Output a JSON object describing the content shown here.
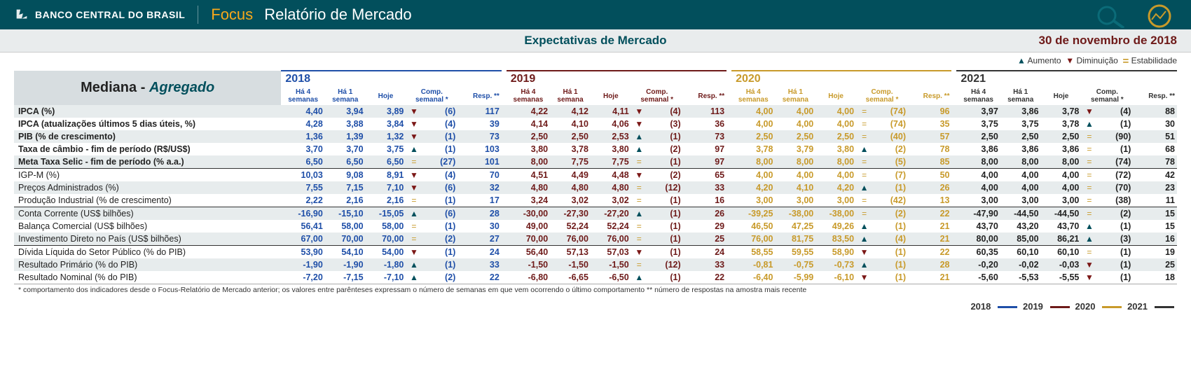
{
  "header": {
    "bank": "BANCO CENTRAL DO BRASIL",
    "focus": "Focus",
    "report": "Relatório de Mercado"
  },
  "subhead": {
    "title": "Expectativas de Mercado",
    "date": "30 de novembro de 2018"
  },
  "legend": {
    "up": "Aumento",
    "down": "Diminuição",
    "eq": "Estabilidade"
  },
  "table_title": {
    "a": "Mediana -",
    "b": "Agregado"
  },
  "columns": {
    "ha4": "Há 4\nsemanas",
    "ha1": "Há 1\nsemana",
    "hoje": "Hoje",
    "comp": "Comp.\nsemanal *",
    "resp": "Resp. **"
  },
  "years": [
    "2018",
    "2019",
    "2020",
    "2021"
  ],
  "year_colors": {
    "2018": "#1f4fa8",
    "2019": "#6e1a19",
    "2020": "#c89a2a",
    "2021": "#333333"
  },
  "footnote": "* comportamento dos indicadores desde o Focus-Relatório de Mercado anterior; os valores entre parênteses expressam o número de semanas em que vem ocorrendo o último comportamento ** número de respostas na amostra mais recente",
  "rows": [
    {
      "label": "IPCA (%)",
      "odd": true,
      "sep": false,
      "y": {
        "2018": {
          "h4": "4,40",
          "h1": "3,94",
          "hj": "3,89",
          "dir": "down",
          "cnt": "(6)",
          "r": "117"
        },
        "2019": {
          "h4": "4,22",
          "h1": "4,12",
          "hj": "4,11",
          "dir": "down",
          "cnt": "(4)",
          "r": "113"
        },
        "2020": {
          "h4": "4,00",
          "h1": "4,00",
          "hj": "4,00",
          "dir": "eq",
          "cnt": "(74)",
          "r": "96"
        },
        "2021": {
          "h4": "3,97",
          "h1": "3,86",
          "hj": "3,78",
          "dir": "down",
          "cnt": "(4)",
          "r": "88"
        }
      }
    },
    {
      "label": "IPCA (atualizações últimos 5 dias úteis, %)",
      "odd": false,
      "y": {
        "2018": {
          "h4": "4,28",
          "h1": "3,88",
          "hj": "3,84",
          "dir": "down",
          "cnt": "(4)",
          "r": "39"
        },
        "2019": {
          "h4": "4,14",
          "h1": "4,10",
          "hj": "4,06",
          "dir": "down",
          "cnt": "(3)",
          "r": "36"
        },
        "2020": {
          "h4": "4,00",
          "h1": "4,00",
          "hj": "4,00",
          "dir": "eq",
          "cnt": "(74)",
          "r": "35"
        },
        "2021": {
          "h4": "3,75",
          "h1": "3,75",
          "hj": "3,78",
          "dir": "up",
          "cnt": "(1)",
          "r": "30"
        }
      }
    },
    {
      "label": "PIB (% de crescimento)",
      "odd": true,
      "y": {
        "2018": {
          "h4": "1,36",
          "h1": "1,39",
          "hj": "1,32",
          "dir": "down",
          "cnt": "(1)",
          "r": "73"
        },
        "2019": {
          "h4": "2,50",
          "h1": "2,50",
          "hj": "2,53",
          "dir": "up",
          "cnt": "(1)",
          "r": "73"
        },
        "2020": {
          "h4": "2,50",
          "h1": "2,50",
          "hj": "2,50",
          "dir": "eq",
          "cnt": "(40)",
          "r": "57"
        },
        "2021": {
          "h4": "2,50",
          "h1": "2,50",
          "hj": "2,50",
          "dir": "eq",
          "cnt": "(90)",
          "r": "51"
        }
      }
    },
    {
      "label": "Taxa de câmbio - fim de período (R$/US$)",
      "odd": false,
      "y": {
        "2018": {
          "h4": "3,70",
          "h1": "3,70",
          "hj": "3,75",
          "dir": "up",
          "cnt": "(1)",
          "r": "103"
        },
        "2019": {
          "h4": "3,80",
          "h1": "3,78",
          "hj": "3,80",
          "dir": "up",
          "cnt": "(2)",
          "r": "97"
        },
        "2020": {
          "h4": "3,78",
          "h1": "3,79",
          "hj": "3,80",
          "dir": "up",
          "cnt": "(2)",
          "r": "78"
        },
        "2021": {
          "h4": "3,86",
          "h1": "3,86",
          "hj": "3,86",
          "dir": "eq",
          "cnt": "(1)",
          "r": "68"
        }
      }
    },
    {
      "label": "Meta Taxa Selic - fim de período (% a.a.)",
      "odd": true,
      "y": {
        "2018": {
          "h4": "6,50",
          "h1": "6,50",
          "hj": "6,50",
          "dir": "eq",
          "cnt": "(27)",
          "r": "101"
        },
        "2019": {
          "h4": "8,00",
          "h1": "7,75",
          "hj": "7,75",
          "dir": "eq",
          "cnt": "(1)",
          "r": "97"
        },
        "2020": {
          "h4": "8,00",
          "h1": "8,00",
          "hj": "8,00",
          "dir": "eq",
          "cnt": "(5)",
          "r": "85"
        },
        "2021": {
          "h4": "8,00",
          "h1": "8,00",
          "hj": "8,00",
          "dir": "eq",
          "cnt": "(74)",
          "r": "78"
        }
      }
    },
    {
      "label": "IGP-M (%)",
      "odd": false,
      "sep": true,
      "y": {
        "2018": {
          "h4": "10,03",
          "h1": "9,08",
          "hj": "8,91",
          "dir": "down",
          "cnt": "(4)",
          "r": "70"
        },
        "2019": {
          "h4": "4,51",
          "h1": "4,49",
          "hj": "4,48",
          "dir": "down",
          "cnt": "(2)",
          "r": "65"
        },
        "2020": {
          "h4": "4,00",
          "h1": "4,00",
          "hj": "4,00",
          "dir": "eq",
          "cnt": "(7)",
          "r": "50"
        },
        "2021": {
          "h4": "4,00",
          "h1": "4,00",
          "hj": "4,00",
          "dir": "eq",
          "cnt": "(72)",
          "r": "42"
        }
      }
    },
    {
      "label": "Preços Administrados (%)",
      "odd": true,
      "y": {
        "2018": {
          "h4": "7,55",
          "h1": "7,15",
          "hj": "7,10",
          "dir": "down",
          "cnt": "(6)",
          "r": "32"
        },
        "2019": {
          "h4": "4,80",
          "h1": "4,80",
          "hj": "4,80",
          "dir": "eq",
          "cnt": "(12)",
          "r": "33"
        },
        "2020": {
          "h4": "4,20",
          "h1": "4,10",
          "hj": "4,20",
          "dir": "up",
          "cnt": "(1)",
          "r": "26"
        },
        "2021": {
          "h4": "4,00",
          "h1": "4,00",
          "hj": "4,00",
          "dir": "eq",
          "cnt": "(70)",
          "r": "23"
        }
      }
    },
    {
      "label": "Produção Industrial (% de crescimento)",
      "odd": false,
      "y": {
        "2018": {
          "h4": "2,22",
          "h1": "2,16",
          "hj": "2,16",
          "dir": "eq",
          "cnt": "(1)",
          "r": "17"
        },
        "2019": {
          "h4": "3,24",
          "h1": "3,02",
          "hj": "3,02",
          "dir": "eq",
          "cnt": "(1)",
          "r": "16"
        },
        "2020": {
          "h4": "3,00",
          "h1": "3,00",
          "hj": "3,00",
          "dir": "eq",
          "cnt": "(42)",
          "r": "13"
        },
        "2021": {
          "h4": "3,00",
          "h1": "3,00",
          "hj": "3,00",
          "dir": "eq",
          "cnt": "(38)",
          "r": "11"
        }
      }
    },
    {
      "label": "Conta Corrente (US$ bilhões)",
      "odd": true,
      "sep": true,
      "y": {
        "2018": {
          "h4": "-16,90",
          "h1": "-15,10",
          "hj": "-15,05",
          "dir": "up",
          "cnt": "(6)",
          "r": "28"
        },
        "2019": {
          "h4": "-30,00",
          "h1": "-27,30",
          "hj": "-27,20",
          "dir": "up",
          "cnt": "(1)",
          "r": "26"
        },
        "2020": {
          "h4": "-39,25",
          "h1": "-38,00",
          "hj": "-38,00",
          "dir": "eq",
          "cnt": "(2)",
          "r": "22"
        },
        "2021": {
          "h4": "-47,90",
          "h1": "-44,50",
          "hj": "-44,50",
          "dir": "eq",
          "cnt": "(2)",
          "r": "15"
        }
      }
    },
    {
      "label": "Balança Comercial (US$ bilhões)",
      "odd": false,
      "y": {
        "2018": {
          "h4": "56,41",
          "h1": "58,00",
          "hj": "58,00",
          "dir": "eq",
          "cnt": "(1)",
          "r": "30"
        },
        "2019": {
          "h4": "49,00",
          "h1": "52,24",
          "hj": "52,24",
          "dir": "eq",
          "cnt": "(1)",
          "r": "29"
        },
        "2020": {
          "h4": "46,50",
          "h1": "47,25",
          "hj": "49,26",
          "dir": "up",
          "cnt": "(1)",
          "r": "21"
        },
        "2021": {
          "h4": "43,70",
          "h1": "43,20",
          "hj": "43,70",
          "dir": "up",
          "cnt": "(1)",
          "r": "15"
        }
      }
    },
    {
      "label": "Investimento Direto no País (US$ bilhões)",
      "odd": true,
      "y": {
        "2018": {
          "h4": "67,00",
          "h1": "70,00",
          "hj": "70,00",
          "dir": "eq",
          "cnt": "(2)",
          "r": "27"
        },
        "2019": {
          "h4": "70,00",
          "h1": "76,00",
          "hj": "76,00",
          "dir": "eq",
          "cnt": "(1)",
          "r": "25"
        },
        "2020": {
          "h4": "76,00",
          "h1": "81,75",
          "hj": "83,50",
          "dir": "up",
          "cnt": "(4)",
          "r": "21"
        },
        "2021": {
          "h4": "80,00",
          "h1": "85,00",
          "hj": "86,21",
          "dir": "up",
          "cnt": "(3)",
          "r": "16"
        }
      }
    },
    {
      "label": "Dívida Líquida do Setor Público (% do PIB)",
      "odd": false,
      "sep": true,
      "y": {
        "2018": {
          "h4": "53,90",
          "h1": "54,10",
          "hj": "54,00",
          "dir": "down",
          "cnt": "(1)",
          "r": "24"
        },
        "2019": {
          "h4": "56,40",
          "h1": "57,13",
          "hj": "57,03",
          "dir": "down",
          "cnt": "(1)",
          "r": "24"
        },
        "2020": {
          "h4": "58,55",
          "h1": "59,55",
          "hj": "58,90",
          "dir": "down",
          "cnt": "(1)",
          "r": "22"
        },
        "2021": {
          "h4": "60,35",
          "h1": "60,10",
          "hj": "60,10",
          "dir": "eq",
          "cnt": "(1)",
          "r": "19"
        }
      }
    },
    {
      "label": "Resultado Primário (% do PIB)",
      "odd": true,
      "y": {
        "2018": {
          "h4": "-1,90",
          "h1": "-1,90",
          "hj": "-1,80",
          "dir": "up",
          "cnt": "(1)",
          "r": "33"
        },
        "2019": {
          "h4": "-1,50",
          "h1": "-1,50",
          "hj": "-1,50",
          "dir": "eq",
          "cnt": "(12)",
          "r": "33"
        },
        "2020": {
          "h4": "-0,81",
          "h1": "-0,75",
          "hj": "-0,73",
          "dir": "up",
          "cnt": "(1)",
          "r": "28"
        },
        "2021": {
          "h4": "-0,20",
          "h1": "-0,02",
          "hj": "-0,03",
          "dir": "down",
          "cnt": "(1)",
          "r": "25"
        }
      }
    },
    {
      "label": "Resultado Nominal (% do PIB)",
      "odd": false,
      "y": {
        "2018": {
          "h4": "-7,20",
          "h1": "-7,15",
          "hj": "-7,10",
          "dir": "up",
          "cnt": "(2)",
          "r": "22"
        },
        "2019": {
          "h4": "-6,80",
          "h1": "-6,65",
          "hj": "-6,50",
          "dir": "up",
          "cnt": "(1)",
          "r": "22"
        },
        "2020": {
          "h4": "-6,40",
          "h1": "-5,99",
          "hj": "-6,10",
          "dir": "down",
          "cnt": "(1)",
          "r": "21"
        },
        "2021": {
          "h4": "-5,60",
          "h1": "-5,53",
          "hj": "-5,55",
          "dir": "down",
          "cnt": "(1)",
          "r": "18"
        }
      }
    }
  ]
}
